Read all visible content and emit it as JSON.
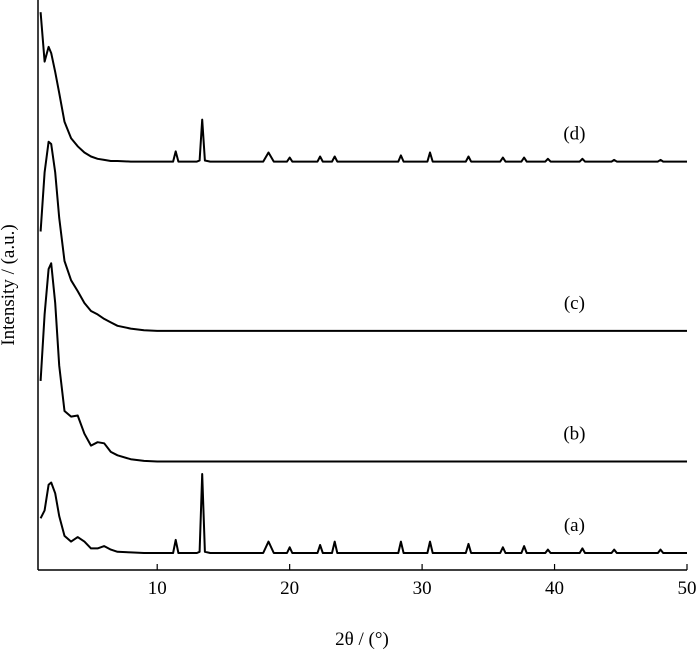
{
  "chart_data": {
    "type": "line",
    "x_label": "2θ / (°)",
    "y_label": "Intensity / (a.u.)",
    "x": [
      1.2,
      1.5,
      1.8,
      2.0,
      2.3,
      2.6,
      3.0,
      3.5,
      4.0,
      4.5,
      5.0,
      5.5,
      6.0,
      6.5,
      7,
      8,
      9,
      10,
      11,
      11.2,
      11.4,
      11.6,
      12,
      13,
      13.2,
      13.4,
      13.6,
      14,
      15,
      18,
      18.4,
      18.8,
      19.8,
      20,
      20.2,
      22.1,
      22.3,
      22.5,
      23.2,
      23.4,
      23.6,
      26,
      28.2,
      28.4,
      28.6,
      30.4,
      30.6,
      30.8,
      33.3,
      33.5,
      33.7,
      35.9,
      36.1,
      36.3,
      37.5,
      37.7,
      37.9,
      39.3,
      39.5,
      39.7,
      41.9,
      42.1,
      42.3,
      44.3,
      44.5,
      44.7,
      47.8,
      48,
      48.2,
      50
    ],
    "series": [
      {
        "name": "(a)",
        "color": "#000000",
        "values": [
          9.1,
          10.5,
          15.0,
          15.4,
          13.5,
          9.5,
          6.0,
          5.0,
          5.8,
          5.0,
          3.8,
          3.8,
          4.2,
          3.6,
          3.2,
          3.1,
          3.0,
          3.0,
          3.0,
          3.0,
          5.3,
          3.0,
          3.0,
          3.0,
          3.2,
          16.9,
          3.2,
          3.0,
          3.0,
          3.0,
          5.0,
          3.0,
          3.0,
          4.0,
          3.0,
          3.0,
          4.4,
          3.0,
          3.0,
          5.0,
          3.0,
          3.0,
          3.0,
          5.0,
          3.0,
          3.0,
          5.0,
          3.0,
          3.0,
          4.6,
          3.0,
          3.0,
          4.0,
          3.0,
          3.0,
          4.2,
          3.0,
          3.0,
          3.6,
          3.0,
          3.0,
          3.8,
          3.0,
          3.0,
          3.6,
          3.0,
          3.0,
          3.6,
          3.0,
          3.0
        ]
      },
      {
        "name": "(b)",
        "color": "#000000",
        "values": [
          33.3,
          45,
          53,
          54.0,
          47,
          36,
          28,
          27,
          27.2,
          24,
          21.9,
          22.5,
          22.3,
          20.8,
          20.2,
          19.5,
          19.2,
          19.1,
          19.1,
          19.1,
          19.1,
          19.1,
          19.1,
          19.1,
          19.1,
          19.1,
          19.1,
          19.1,
          19.1,
          19.1,
          19.1,
          19.1,
          19.1,
          19.1,
          19.1,
          19.1,
          19.1,
          19.1,
          19.1,
          19.1,
          19.1,
          19.1,
          19.1,
          19.1,
          19.1,
          19.1,
          19.1,
          19.1,
          19.1,
          19.1,
          19.1,
          19.1,
          19.1,
          19.1,
          19.1,
          19.1,
          19.1,
          19.1,
          19.1,
          19.1,
          19.1,
          19.1,
          19.1,
          19.1,
          19.1,
          19.1,
          19.1,
          19.1,
          19.1,
          19.1
        ]
      },
      {
        "name": "(c)",
        "color": "#000000",
        "values": [
          59.6,
          70,
          75.4,
          75,
          70,
          62,
          54.4,
          51,
          49.1,
          47,
          45.6,
          45,
          44.2,
          43.6,
          43,
          42.5,
          42.2,
          42.1,
          42.1,
          42.1,
          42.1,
          42.1,
          42.1,
          42.1,
          42.1,
          42.1,
          42.1,
          42.1,
          42.1,
          42.1,
          42.1,
          42.1,
          42.1,
          42.1,
          42.1,
          42.1,
          42.1,
          42.1,
          42.1,
          42.1,
          42.1,
          42.1,
          42.1,
          42.1,
          42.1,
          42.1,
          42.1,
          42.1,
          42.1,
          42.1,
          42.1,
          42.1,
          42.1,
          42.1,
          42.1,
          42.1,
          42.1,
          42.1,
          42.1,
          42.1,
          42.1,
          42.1,
          42.1,
          42.1,
          42.1,
          42.1,
          42.1,
          42.1,
          42.1,
          42.1
        ]
      },
      {
        "name": "(d)",
        "color": "#000000",
        "values": [
          98.2,
          89.5,
          92.1,
          91,
          87.7,
          84,
          78.9,
          76,
          74.6,
          73.5,
          72.8,
          72.4,
          72.2,
          72.0,
          72,
          71.9,
          71.9,
          71.9,
          71.9,
          71.9,
          73.7,
          71.9,
          71.9,
          71.9,
          72.1,
          79.3,
          72.1,
          71.9,
          71.9,
          71.9,
          73.5,
          71.9,
          71.9,
          72.6,
          71.9,
          71.9,
          72.8,
          71.9,
          71.9,
          72.8,
          71.9,
          71.9,
          71.9,
          73.0,
          71.9,
          71.9,
          73.5,
          71.9,
          71.9,
          72.8,
          71.9,
          71.9,
          72.6,
          71.9,
          71.9,
          72.6,
          71.9,
          71.9,
          72.4,
          71.9,
          71.9,
          72.4,
          71.9,
          71.9,
          72.2,
          71.9,
          71.9,
          72.2,
          71.9,
          71.9
        ]
      }
    ],
    "xlim": [
      1,
      50
    ],
    "xticks": [
      10,
      20,
      30,
      40,
      50
    ],
    "ylim": [
      0,
      100
    ]
  }
}
